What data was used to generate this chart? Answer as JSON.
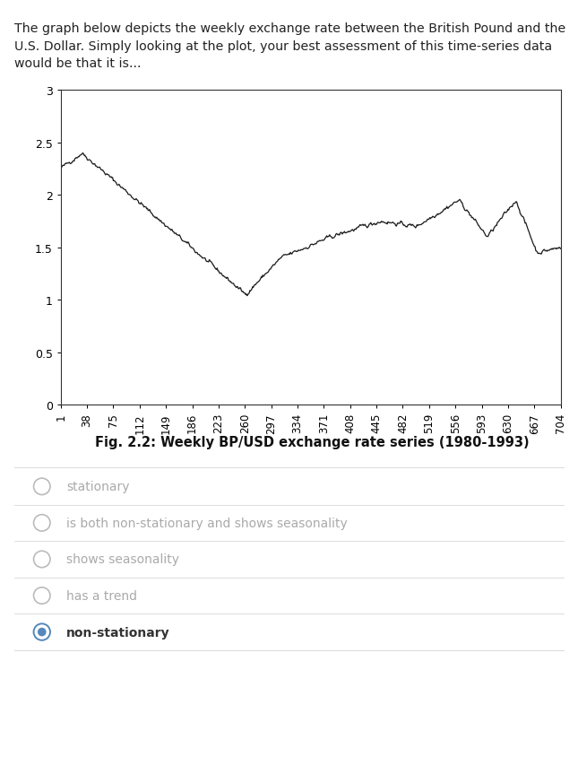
{
  "title": "Fig. 2.2: Weekly BP/USD exchange rate series (1980-1993)",
  "xlim": [
    1,
    704
  ],
  "ylim": [
    0,
    3
  ],
  "yticks": [
    0,
    0.5,
    1,
    1.5,
    2,
    2.5,
    3
  ],
  "xticks": [
    1,
    38,
    75,
    112,
    149,
    186,
    223,
    260,
    297,
    334,
    371,
    408,
    445,
    482,
    519,
    556,
    593,
    630,
    667,
    704
  ],
  "line_color": "#1a1a1a",
  "line_width": 0.9,
  "bg_color": "#ffffff",
  "header_text_line1": "The graph below depicts the weekly exchange rate between the British Pound and the",
  "header_text_line2": "U.S. Dollar. Simply looking at the plot, your best assessment of this time-series data",
  "header_text_line3": "would be that it is...",
  "options": [
    {
      "text": "stationary",
      "selected": false
    },
    {
      "text": "is both non-stationary and shows seasonality",
      "selected": false
    },
    {
      "text": "shows seasonality",
      "selected": false
    },
    {
      "text": "has a trend",
      "selected": false
    },
    {
      "text": "non-stationary",
      "selected": true
    }
  ],
  "fig_width": 6.45,
  "fig_height": 8.45,
  "dpi": 100,
  "unselected_circle_color": "#bbbbbb",
  "selected_circle_outer": "#5588bb",
  "selected_circle_inner": "#5588bb",
  "unselected_text_color": "#aaaaaa",
  "selected_text_color": "#333333",
  "separator_color": "#dddddd",
  "header_color": "#222222"
}
